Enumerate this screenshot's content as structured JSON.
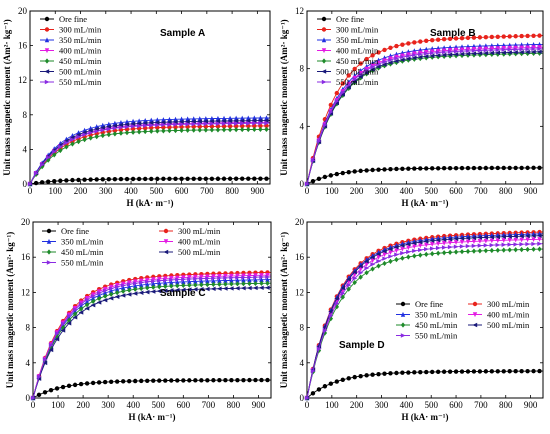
{
  "colors": {
    "Ore fine": "#000000",
    "300 mL/min": "#e8231c",
    "350 mL/min": "#1f2fe0",
    "400 mL/min": "#e31ae3",
    "450 mL/min": "#1e8a2a",
    "500 mL/min": "#1a1a7a",
    "550 mL/min": "#8a2be2"
  },
  "chart_data": [
    {
      "type": "line",
      "title": "Sample A",
      "xlabel": "H (kA· m⁻¹)",
      "ylabel": "Unit mass magnetic moment (Am²· kg⁻¹)",
      "xlim": [
        0,
        950
      ],
      "ylim": [
        0,
        20
      ],
      "xticks": [
        "0",
        "100",
        "200",
        "300",
        "400",
        "500",
        "600",
        "700",
        "800",
        "900"
      ],
      "yticks": [
        "0",
        "4",
        "8",
        "12",
        "16",
        "20"
      ],
      "legend_position": "top-left",
      "series": [
        {
          "name": "Ore fine",
          "sat": 0.6
        },
        {
          "name": "300 mL/min",
          "sat": 6.6
        },
        {
          "name": "350 mL/min",
          "sat": 7.5
        },
        {
          "name": "400 mL/min",
          "sat": 7.0
        },
        {
          "name": "450 mL/min",
          "sat": 6.2
        },
        {
          "name": "500 mL/min",
          "sat": 7.2
        },
        {
          "name": "550 mL/min",
          "sat": 6.9
        }
      ]
    },
    {
      "type": "line",
      "title": "Sample B",
      "xlabel": "H (kA· m⁻¹)",
      "ylabel": "Unit mass magnetic moment (Am²· kg⁻¹)",
      "xlim": [
        0,
        950
      ],
      "ylim": [
        0,
        12
      ],
      "xticks": [
        "0",
        "100",
        "200",
        "300",
        "400",
        "500",
        "600",
        "700",
        "800",
        "900"
      ],
      "yticks": [
        "0",
        "4",
        "8",
        "12"
      ],
      "legend_position": "top-left",
      "series": [
        {
          "name": "Ore fine",
          "sat": 1.1
        },
        {
          "name": "300 mL/min",
          "sat": 10.1
        },
        {
          "name": "350 mL/min",
          "sat": 9.5
        },
        {
          "name": "400 mL/min",
          "sat": 9.3
        },
        {
          "name": "450 mL/min",
          "sat": 8.9
        },
        {
          "name": "500 mL/min",
          "sat": 9.0
        },
        {
          "name": "550 mL/min",
          "sat": 9.2
        }
      ]
    },
    {
      "type": "line",
      "title": "Sample C",
      "xlabel": "H (kA· m⁻¹)",
      "ylabel": "Unit mass magnetic moment (Am²· kg⁻¹)",
      "xlim": [
        0,
        950
      ],
      "ylim": [
        0,
        20
      ],
      "xticks": [
        "0",
        "100",
        "200",
        "300",
        "400",
        "500",
        "600",
        "700",
        "800",
        "900"
      ],
      "yticks": [
        "0",
        "4",
        "8",
        "12",
        "16",
        "20"
      ],
      "legend_position": "top-left",
      "series": [
        {
          "name": "Ore fine",
          "sat": 2.0
        },
        {
          "name": "300 mL/min",
          "sat": 14.0
        },
        {
          "name": "350 mL/min",
          "sat": 13.2
        },
        {
          "name": "400 mL/min",
          "sat": 13.7
        },
        {
          "name": "450 mL/min",
          "sat": 12.8
        },
        {
          "name": "500 mL/min",
          "sat": 12.3
        },
        {
          "name": "550 mL/min",
          "sat": 13.5
        }
      ]
    },
    {
      "type": "line",
      "title": "Sample D",
      "xlabel": "H (kA· m⁻¹)",
      "ylabel": "Unit mass magnetic moment (Am²· kg⁻¹)",
      "xlim": [
        0,
        950
      ],
      "ylim": [
        0,
        20
      ],
      "xticks": [
        "0",
        "100",
        "200",
        "300",
        "400",
        "500",
        "600",
        "700",
        "800",
        "900"
      ],
      "yticks": [
        "0",
        "4",
        "8",
        "12",
        "16",
        "20"
      ],
      "legend_position": "center-left-two-columns",
      "series": [
        {
          "name": "Ore fine",
          "sat": 3.0
        },
        {
          "name": "300 mL/min",
          "sat": 18.5
        },
        {
          "name": "350 mL/min",
          "sat": 18.3
        },
        {
          "name": "400 mL/min",
          "sat": 17.7
        },
        {
          "name": "450 mL/min",
          "sat": 16.6
        },
        {
          "name": "500 mL/min",
          "sat": 18.1
        },
        {
          "name": "550 mL/min",
          "sat": 17.2
        }
      ]
    }
  ]
}
